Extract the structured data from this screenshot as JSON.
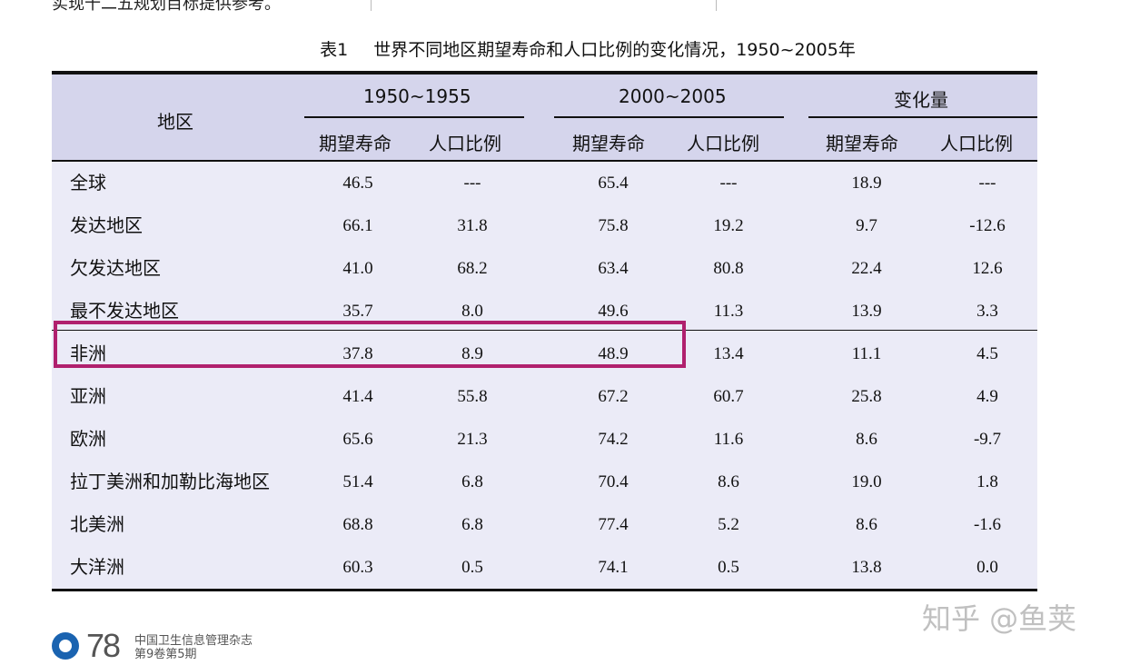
{
  "top_text": "实现十二五规划目标提供参考。",
  "caption": {
    "number": "表1",
    "title": "世界不同地区期望寿命和人口比例的变化情况，1950~2005年"
  },
  "table": {
    "header": {
      "region": "地区",
      "groups": [
        "1950~1955",
        "2000~2005",
        "变化量"
      ],
      "sub": [
        "期望寿命",
        "人口比例",
        "期望寿命",
        "人口比例",
        "期望寿命",
        "人口比例"
      ]
    },
    "rows": [
      {
        "region": "全球",
        "v": [
          "46.5",
          "---",
          "65.4",
          "---",
          "18.9",
          "---"
        ]
      },
      {
        "region": "发达地区",
        "v": [
          "66.1",
          "31.8",
          "75.8",
          "19.2",
          "9.7",
          "-12.6"
        ]
      },
      {
        "region": "欠发达地区",
        "v": [
          "41.0",
          "68.2",
          "63.4",
          "80.8",
          "22.4",
          "12.6"
        ]
      },
      {
        "region": "最不发达地区",
        "v": [
          "35.7",
          "8.0",
          "49.6",
          "11.3",
          "13.9",
          "3.3"
        ]
      },
      {
        "region": "非洲",
        "v": [
          "37.8",
          "8.9",
          "48.9",
          "13.4",
          "11.1",
          "4.5"
        ]
      },
      {
        "region": "亚洲",
        "v": [
          "41.4",
          "55.8",
          "67.2",
          "60.7",
          "25.8",
          "4.9"
        ]
      },
      {
        "region": "欧洲",
        "v": [
          "65.6",
          "21.3",
          "74.2",
          "11.6",
          "8.6",
          "-9.7"
        ]
      },
      {
        "region": "拉丁美洲和加勒比海地区",
        "v": [
          "51.4",
          "6.8",
          "70.4",
          "8.6",
          "19.0",
          "1.8"
        ]
      },
      {
        "region": "北美洲",
        "v": [
          "68.8",
          "6.8",
          "77.4",
          "5.2",
          "8.6",
          "-1.6"
        ]
      },
      {
        "region": "大洋洲",
        "v": [
          "60.3",
          "0.5",
          "74.1",
          "0.5",
          "13.8",
          "0.0"
        ]
      }
    ]
  },
  "footer": {
    "page": "78",
    "journal_line1": "中国卫生信息管理杂志",
    "journal_line2": "第9卷第5期"
  },
  "watermark": "知乎 @鱼荚",
  "colors": {
    "highlight": "#b0206e",
    "header_bg": "#d5d5ec",
    "body_bg": "#ebebf7"
  }
}
